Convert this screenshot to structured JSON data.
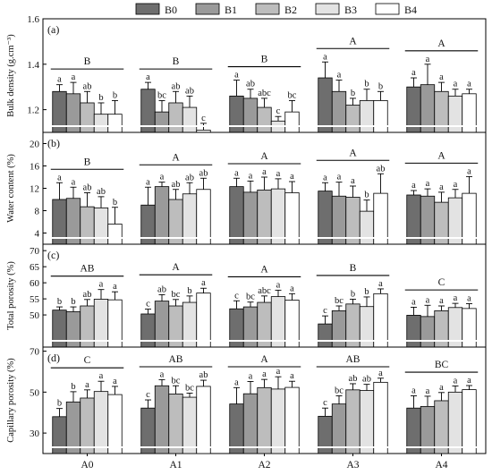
{
  "legend": [
    {
      "name": "B0",
      "color": "#6e6e6e"
    },
    {
      "name": "B1",
      "color": "#9a9a9a"
    },
    {
      "name": "B2",
      "color": "#bdbdbd"
    },
    {
      "name": "B3",
      "color": "#e3e3e3"
    },
    {
      "name": "B4",
      "color": "#ffffff"
    }
  ],
  "categories": [
    "A0",
    "A1",
    "A2",
    "A3",
    "A4"
  ],
  "chart_data": [
    {
      "type": "bar",
      "panel": "(a)",
      "ylabel": "Bulk density (g.cm⁻³)",
      "ylim": [
        1.1,
        1.6
      ],
      "yticks": [
        1.2,
        1.4,
        1.6
      ],
      "categories": [
        "A0",
        "A1",
        "A2",
        "A3",
        "A4"
      ],
      "series": [
        {
          "name": "B0",
          "values": [
            1.28,
            1.29,
            1.26,
            1.34,
            1.3
          ],
          "errors": [
            0.03,
            0.03,
            0.07,
            0.07,
            0.04
          ],
          "letters": [
            "a",
            "a",
            "a",
            "a",
            "a"
          ]
        },
        {
          "name": "B1",
          "values": [
            1.27,
            1.19,
            1.25,
            1.28,
            1.31
          ],
          "errors": [
            0.05,
            0.05,
            0.04,
            0.05,
            0.09
          ],
          "letters": [
            "a",
            "bc",
            "ab",
            "a",
            "a"
          ]
        },
        {
          "name": "B2",
          "values": [
            1.23,
            1.23,
            1.21,
            1.22,
            1.28
          ],
          "errors": [
            0.05,
            0.05,
            0.04,
            0.03,
            0.04
          ],
          "letters": [
            "ab",
            "ab",
            "abc",
            "b",
            "a"
          ]
        },
        {
          "name": "B3",
          "values": [
            1.18,
            1.21,
            1.15,
            1.24,
            1.26
          ],
          "errors": [
            0.05,
            0.05,
            0.02,
            0.05,
            0.03
          ],
          "letters": [
            "b",
            "ab",
            "c",
            "b",
            "a"
          ]
        },
        {
          "name": "B4",
          "values": [
            1.18,
            1.11,
            1.19,
            1.24,
            1.27
          ],
          "errors": [
            0.06,
            0.03,
            0.05,
            0.04,
            0.02
          ],
          "letters": [
            "b",
            "c",
            "bc",
            "b",
            "a"
          ]
        }
      ],
      "group_letters": [
        "B",
        "B",
        "B",
        "A",
        "A"
      ]
    },
    {
      "type": "bar",
      "panel": "(b)",
      "ylabel": "Water content (%)",
      "ylim": [
        2,
        22
      ],
      "yticks": [
        4,
        8,
        12,
        16,
        20
      ],
      "categories": [
        "A0",
        "A1",
        "A2",
        "A3",
        "A4"
      ],
      "series": [
        {
          "name": "B0",
          "values": [
            10.0,
            9.0,
            12.3,
            11.5,
            10.8
          ],
          "errors": [
            3.0,
            3.2,
            1.5,
            1.5,
            0.8
          ],
          "letters": [
            "a",
            "a",
            "a",
            "a",
            "a"
          ]
        },
        {
          "name": "B1",
          "values": [
            10.2,
            12.3,
            11.3,
            10.6,
            10.6
          ],
          "errors": [
            2.0,
            0.8,
            2.0,
            2.5,
            1.3
          ],
          "letters": [
            "a",
            "a",
            "a",
            "a",
            "a"
          ]
        },
        {
          "name": "B2",
          "values": [
            8.7,
            10.0,
            11.7,
            10.4,
            9.5
          ],
          "errors": [
            2.5,
            1.8,
            2.3,
            2.0,
            1.8
          ],
          "letters": [
            "ab",
            "ab",
            "a",
            "a",
            "a"
          ]
        },
        {
          "name": "B3",
          "values": [
            8.5,
            11.0,
            11.9,
            7.9,
            10.3
          ],
          "errors": [
            2.0,
            2.0,
            1.8,
            2.0,
            1.5
          ],
          "letters": [
            "ab",
            "ab",
            "a",
            "b",
            "a"
          ]
        },
        {
          "name": "B4",
          "values": [
            5.6,
            11.8,
            11.2,
            11.1,
            11.1
          ],
          "errors": [
            3.0,
            2.0,
            2.0,
            3.5,
            3.0
          ],
          "letters": [
            "b",
            "ab",
            "a",
            "ab",
            "a"
          ]
        }
      ],
      "group_letters": [
        "B",
        "A",
        "A",
        "A",
        "A"
      ]
    },
    {
      "type": "bar",
      "panel": "(c)",
      "ylabel": "Total porosity (%)",
      "ylim": [
        40,
        72
      ],
      "yticks": [
        50,
        55,
        60,
        65,
        70
      ],
      "categories": [
        "A0",
        "A1",
        "A2",
        "A3",
        "A4"
      ],
      "series": [
        {
          "name": "B0",
          "values": [
            51.5,
            50.3,
            51.9,
            47.2,
            49.9
          ],
          "errors": [
            1.0,
            1.5,
            2.5,
            2.5,
            2.5
          ],
          "letters": [
            "b",
            "c",
            "c",
            "c",
            "a"
          ]
        },
        {
          "name": "B1",
          "values": [
            51.0,
            54.3,
            52.5,
            51.3,
            49.5
          ],
          "errors": [
            1.5,
            2.0,
            1.5,
            1.5,
            3.5
          ],
          "letters": [
            "b",
            "ab",
            "bc",
            "bc",
            "a"
          ]
        },
        {
          "name": "B2",
          "values": [
            52.8,
            52.8,
            53.9,
            53.4,
            51.3
          ],
          "errors": [
            2.0,
            2.0,
            2.0,
            1.5,
            1.5
          ],
          "letters": [
            "ab",
            "bc",
            "abc",
            "b",
            "a"
          ]
        },
        {
          "name": "B3",
          "values": [
            54.9,
            53.9,
            55.7,
            52.6,
            52.3
          ],
          "errors": [
            3.0,
            2.0,
            2.0,
            3.0,
            1.3
          ],
          "letters": [
            "a",
            "b",
            "a",
            "b",
            "a"
          ]
        },
        {
          "name": "B4",
          "values": [
            54.7,
            56.8,
            54.6,
            56.6,
            52.0
          ],
          "errors": [
            2.5,
            1.5,
            2.0,
            1.5,
            1.5
          ],
          "letters": [
            "a",
            "a",
            "a",
            "a",
            "a"
          ]
        }
      ],
      "group_letters": [
        "AB",
        "A",
        "A",
        "B",
        "C"
      ]
    },
    {
      "type": "bar",
      "panel": "(d)",
      "ylabel": "Capillary porosity (%)",
      "ylim": [
        20,
        72
      ],
      "yticks": [
        30,
        50,
        70
      ],
      "categories": [
        "A0",
        "A1",
        "A2",
        "A3",
        "A4"
      ],
      "series": [
        {
          "name": "B0",
          "values": [
            38.0,
            42.2,
            44.2,
            38.2,
            42.2
          ],
          "errors": [
            4.0,
            4.0,
            8.0,
            4.0,
            6.0
          ],
          "letters": [
            "b",
            "c",
            "a",
            "c",
            "a"
          ]
        },
        {
          "name": "B1",
          "values": [
            45.2,
            53.1,
            49.2,
            44.2,
            43.0
          ],
          "errors": [
            5.0,
            3.0,
            6.0,
            4.0,
            5.0
          ],
          "letters": [
            "b",
            "a",
            "a",
            "bc",
            "a"
          ]
        },
        {
          "name": "B2",
          "values": [
            47.1,
            49.1,
            52.2,
            51.1,
            45.8
          ],
          "errors": [
            4.0,
            4.0,
            4.0,
            3.0,
            4.0
          ],
          "letters": [
            "a",
            "bc",
            "a",
            "ab",
            "a"
          ]
        },
        {
          "name": "B3",
          "values": [
            50.3,
            47.5,
            51.5,
            50.8,
            50.0
          ],
          "errors": [
            5.0,
            2.0,
            6.0,
            3.0,
            3.0
          ],
          "letters": [
            "a",
            "bc",
            "a",
            "ab",
            "a"
          ]
        },
        {
          "name": "B4",
          "values": [
            48.8,
            52.8,
            52.3,
            54.8,
            51.2
          ],
          "errors": [
            4.0,
            3.0,
            3.0,
            2.0,
            2.0
          ],
          "letters": [
            "a",
            "ab",
            "a",
            "a",
            "a"
          ]
        }
      ],
      "group_letters": [
        "C",
        "AB",
        "A",
        "AB",
        "BC"
      ]
    }
  ]
}
